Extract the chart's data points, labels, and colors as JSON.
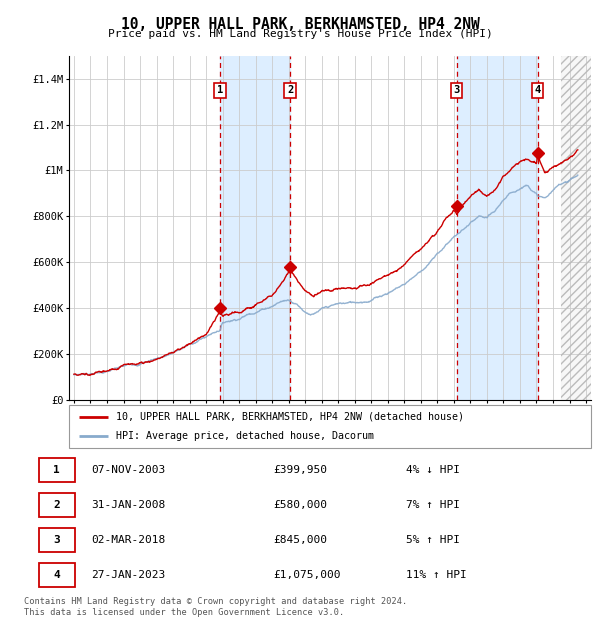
{
  "title": "10, UPPER HALL PARK, BERKHAMSTED, HP4 2NW",
  "subtitle": "Price paid vs. HM Land Registry's House Price Index (HPI)",
  "ylim": [
    0,
    1500000
  ],
  "yticks": [
    0,
    200000,
    400000,
    600000,
    800000,
    1000000,
    1200000,
    1400000
  ],
  "ytick_labels": [
    "£0",
    "£200K",
    "£400K",
    "£600K",
    "£800K",
    "£1M",
    "£1.2M",
    "£1.4M"
  ],
  "line_color_red": "#cc0000",
  "line_color_blue": "#88aacc",
  "sale_marker_color": "#cc0000",
  "bg_band_color": "#ddeeff",
  "grid_color": "#cccccc",
  "sale_points": [
    {
      "num": 1,
      "year": 2003.85,
      "price": 399950
    },
    {
      "num": 2,
      "year": 2008.08,
      "price": 580000
    },
    {
      "num": 3,
      "year": 2018.17,
      "price": 845000
    },
    {
      "num": 4,
      "year": 2023.07,
      "price": 1075000
    }
  ],
  "legend_label_red": "10, UPPER HALL PARK, BERKHAMSTED, HP4 2NW (detached house)",
  "legend_label_blue": "HPI: Average price, detached house, Dacorum",
  "footer": "Contains HM Land Registry data © Crown copyright and database right 2024.\nThis data is licensed under the Open Government Licence v3.0.",
  "table_rows": [
    {
      "num": 1,
      "date": "07-NOV-2003",
      "price": "£399,950",
      "hpi": "4% ↓ HPI"
    },
    {
      "num": 2,
      "date": "31-JAN-2008",
      "price": "£580,000",
      "hpi": "7% ↑ HPI"
    },
    {
      "num": 3,
      "date": "02-MAR-2018",
      "price": "£845,000",
      "hpi": "5% ↑ HPI"
    },
    {
      "num": 4,
      "date": "27-JAN-2023",
      "price": "£1,075,000",
      "hpi": "11% ↑ HPI"
    }
  ]
}
